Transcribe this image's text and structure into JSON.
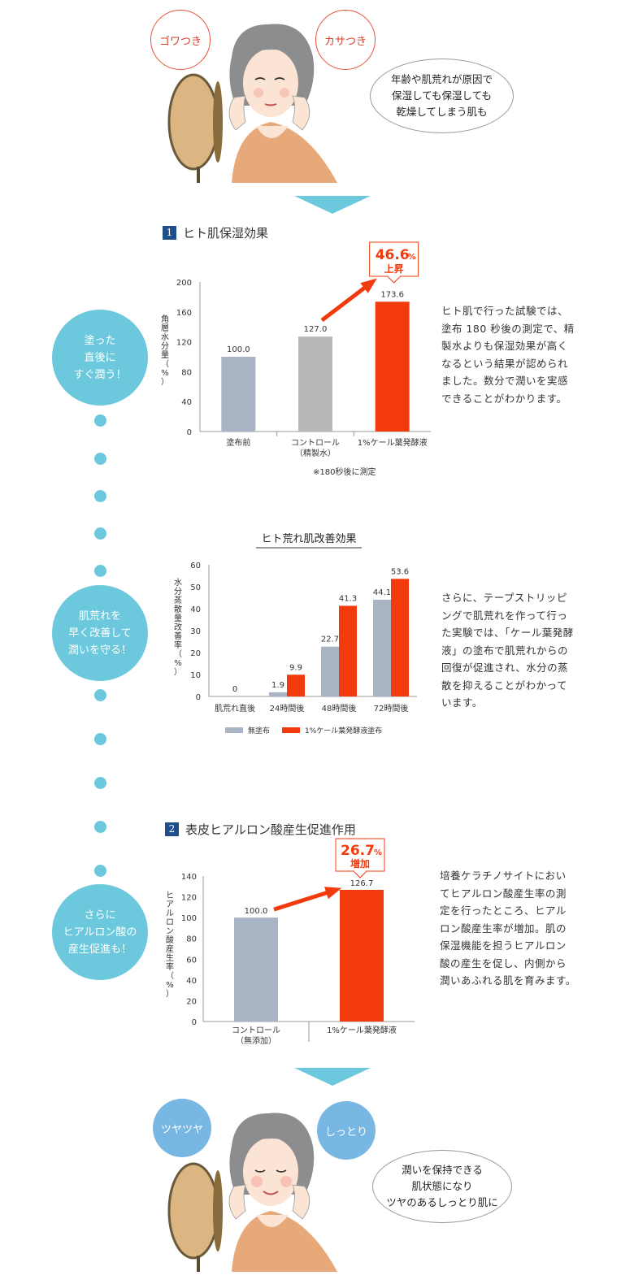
{
  "colors": {
    "accent_red": "#f23a0c",
    "bar_gray": "#a8b4c4",
    "bar_light_gray": "#b8b8b8",
    "teal": "#6cc8dc",
    "navy": "#1f4e8c",
    "blue_bubble": "#79b7e3"
  },
  "top": {
    "bubble_left": "ゴワつき",
    "bubble_right": "カサつき",
    "speech": [
      "年齢や肌荒れが原因で",
      "保湿しても保湿しても",
      "乾燥してしまう肌も"
    ]
  },
  "section1": {
    "num": "1",
    "title": "ヒト肌保湿効果",
    "circle": [
      "塗った",
      "直後に",
      "すぐ潤う！"
    ],
    "desc": [
      "ヒト肌で行った試験では、",
      "塗布 180 秒後の測定で、精",
      "製水よりも保湿効果が高く",
      "なるという結果が認められ",
      "ました。数分で潤いを実感",
      "できることがわかります。"
    ],
    "note": "※180秒後に測定"
  },
  "section_mid": {
    "circle": [
      "肌荒れを",
      "早く改善して",
      "潤いを守る！"
    ],
    "desc": [
      "さらに、テープストリッピ",
      "ングで肌荒れを作って行っ",
      "た実験では、「ケール葉発酵",
      "液」の塗布で肌荒れからの",
      "回復が促進され、水分の蒸",
      "散を抑えることがわかって",
      "います。"
    ]
  },
  "section2": {
    "num": "2",
    "title": "表皮ヒアルロン酸産生促進作用",
    "circle": [
      "さらに",
      "ヒアルロン酸の",
      "産生促進も！"
    ],
    "desc": [
      "培養ケラチノサイトにおい",
      "てヒアルロン酸産生率の測",
      "定を行ったところ、ヒアル",
      "ロン酸産生率が増加。肌の",
      "保湿機能を担うヒアルロン",
      "酸の産生を促し、内側から",
      "潤いあふれる肌を育みます。"
    ]
  },
  "bottom": {
    "bubble_left": "ツヤツヤ",
    "bubble_right": "しっとり",
    "speech": [
      "潤いを保持できる",
      "肌状態になり",
      "ツヤのあるしっとり肌に"
    ]
  },
  "chart_data": [
    {
      "type": "bar",
      "ylabel": "角層水分量（%）",
      "ylim": [
        0,
        200
      ],
      "yticks": [
        0,
        40,
        80,
        120,
        160,
        200
      ],
      "categories": [
        "塗布前",
        "コントロール\n（精製水）",
        "1%ケール葉発酵液"
      ],
      "category_lines": [
        [
          "塗布前"
        ],
        [
          "コントロール",
          "（精製水）"
        ],
        [
          "1%ケール葉発酵液"
        ]
      ],
      "values": [
        100.0,
        127.0,
        173.6
      ],
      "value_labels": [
        "100.0",
        "127.0",
        "173.6"
      ],
      "bar_colors": [
        "#a8b4c4",
        "#b8b8b8",
        "#f23a0c"
      ],
      "callout": {
        "value": "46.6",
        "unit": "%",
        "label": "上昇"
      }
    },
    {
      "type": "bar",
      "title": "ヒト荒れ肌改善効果",
      "ylabel": "水分蒸散量改善率（%）",
      "ylim": [
        0,
        60
      ],
      "yticks": [
        0,
        10,
        20,
        30,
        40,
        50,
        60
      ],
      "categories": [
        "肌荒れ直後",
        "24時間後",
        "48時間後",
        "72時間後"
      ],
      "series": [
        {
          "name": "無塗布",
          "color": "#a8b4c4",
          "values": [
            0,
            1.9,
            22.7,
            44.1
          ],
          "labels": [
            "0",
            "1.9",
            "22.7",
            "44.1"
          ]
        },
        {
          "name": "1%ケール葉発酵液塗布",
          "color": "#f23a0c",
          "values": [
            null,
            9.9,
            41.3,
            53.6
          ],
          "labels": [
            "",
            "9.9",
            "41.3",
            "53.6"
          ]
        }
      ],
      "legend": "bottom"
    },
    {
      "type": "bar",
      "ylabel": "ヒアルロン酸産生率（%）",
      "ylim": [
        0,
        140
      ],
      "yticks": [
        0,
        20,
        40,
        60,
        80,
        100,
        120,
        140
      ],
      "categories": [
        "コントロール\n（無添加）",
        "1%ケール葉発酵液"
      ],
      "category_lines": [
        [
          "コントロール",
          "（無添加）"
        ],
        [
          "1%ケール葉発酵液"
        ]
      ],
      "values": [
        100.0,
        126.7
      ],
      "value_labels": [
        "100.0",
        "126.7"
      ],
      "bar_colors": [
        "#a8b4c4",
        "#f23a0c"
      ],
      "callout": {
        "value": "26.7",
        "unit": "%",
        "label": "増加"
      }
    }
  ]
}
